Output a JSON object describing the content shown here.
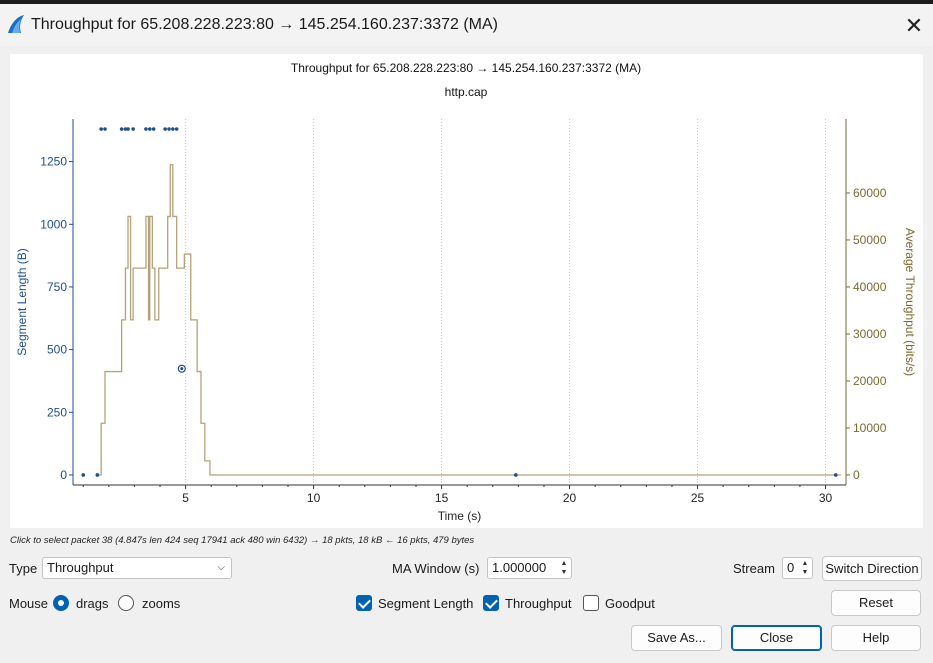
{
  "window": {
    "title": "Throughput for 65.208.228.223:80 → 145.254.160.237:3372 (MA)",
    "close_glyph": "✕",
    "icon": "wireshark-fin-icon"
  },
  "chart_data": {
    "type": "line",
    "title": "Throughput for 65.208.228.223:80 → 145.254.160.237:3372 (MA)",
    "subtitle": "http.cap",
    "xlabel": "Time (s)",
    "ylabel_left": "Segment Length (B)",
    "ylabel_right": "Average Throughput (bits/s)",
    "xlim": [
      0.6,
      30.8
    ],
    "ylim_left": [
      -40,
      1420
    ],
    "ylim_right": [
      -2133,
      75733
    ],
    "x_ticks": [
      5,
      10,
      15,
      20,
      25,
      30
    ],
    "y_left_ticks": [
      0,
      250,
      500,
      750,
      1000,
      1250
    ],
    "y_right_ticks": [
      0,
      10000,
      20000,
      30000,
      40000,
      50000,
      60000
    ],
    "grid": true,
    "colors": {
      "segment": "#1f4e8c",
      "throughput": "#b3a37a",
      "axis_left": "#1f4e8c",
      "axis_right": "#7a6a30"
    },
    "series": [
      {
        "kind": "scatter",
        "points": [
          [
            1.0,
            0
          ],
          [
            1.55,
            0
          ],
          [
            1.7,
            1380
          ],
          [
            1.85,
            1380
          ],
          [
            2.5,
            1380
          ],
          [
            2.65,
            1380
          ],
          [
            2.75,
            1380
          ],
          [
            2.95,
            1380
          ],
          [
            3.45,
            1380
          ],
          [
            3.6,
            1380
          ],
          [
            3.75,
            1380
          ],
          [
            4.2,
            1380
          ],
          [
            4.35,
            1380
          ],
          [
            4.5,
            1380
          ],
          [
            4.65,
            1380
          ],
          [
            17.9,
            0
          ],
          [
            30.4,
            0
          ]
        ],
        "selected": [
          4.85,
          424
        ]
      },
      {
        "kind": "step",
        "points": [
          [
            1.5,
            0
          ],
          [
            1.7,
            11000
          ],
          [
            1.85,
            22000
          ],
          [
            2.5,
            33000
          ],
          [
            2.65,
            44000
          ],
          [
            2.75,
            55000
          ],
          [
            2.85,
            33000
          ],
          [
            2.95,
            44000
          ],
          [
            3.45,
            55000
          ],
          [
            3.55,
            33000
          ],
          [
            3.6,
            55000
          ],
          [
            3.7,
            44000
          ],
          [
            3.8,
            33000
          ],
          [
            3.95,
            44000
          ],
          [
            4.2,
            44000
          ],
          [
            4.3,
            55000
          ],
          [
            4.4,
            66000
          ],
          [
            4.5,
            55000
          ],
          [
            4.65,
            44000
          ],
          [
            4.95,
            47000
          ],
          [
            5.2,
            33000
          ],
          [
            5.45,
            22000
          ],
          [
            5.6,
            11000
          ],
          [
            5.75,
            3000
          ],
          [
            5.95,
            0
          ],
          [
            30.6,
            0
          ]
        ]
      }
    ]
  },
  "status_hint": "Click to select packet 38 (4.847s len 424 seq 17941 ack 480 win 6432) → 18 pkts, 18 kB ← 16 pkts, 479 bytes",
  "controls": {
    "type_label": "Type",
    "type_value": "Throughput",
    "ma_window_label": "MA Window (s)",
    "ma_window_value": "1.000000",
    "stream_label": "Stream",
    "stream_value": "0",
    "switch_direction": "Switch Direction",
    "mouse_label": "Mouse",
    "drags_label": "drags",
    "zooms_label": "zooms",
    "segment_length_label": "Segment Length",
    "throughput_label": "Throughput",
    "goodput_label": "Goodput",
    "reset": "Reset",
    "save_as": "Save As...",
    "close": "Close",
    "help": "Help"
  }
}
